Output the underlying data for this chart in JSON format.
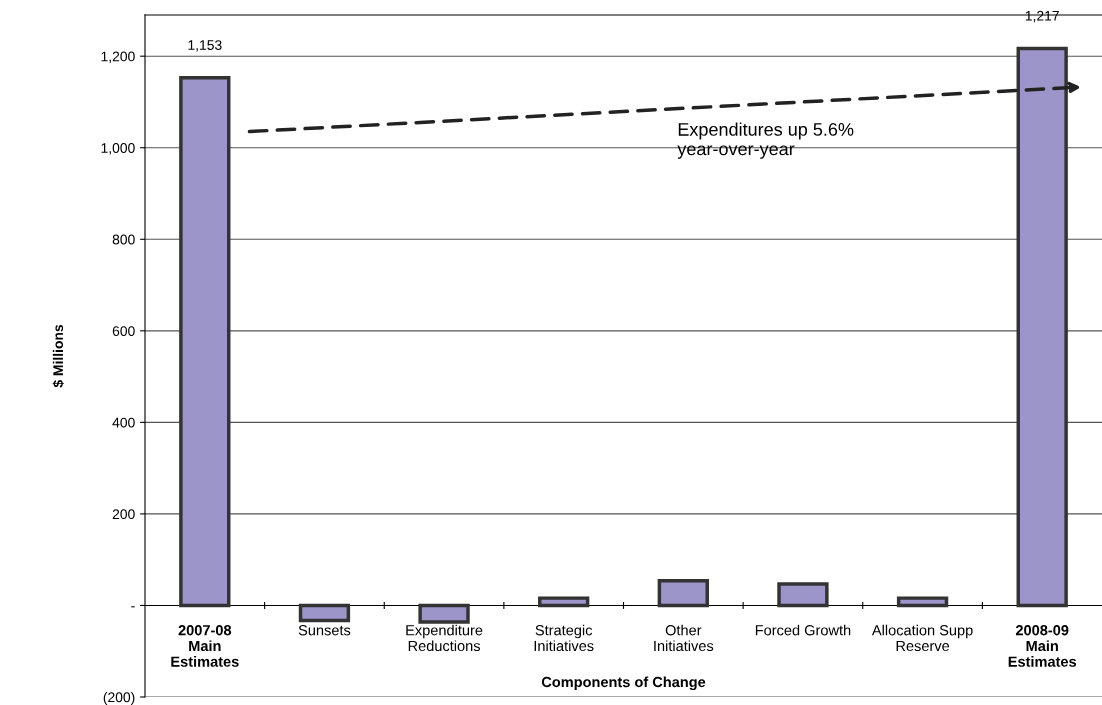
{
  "chart_data": {
    "type": "bar",
    "categories": [
      "2007-08\nMain\nEstimates",
      "Sunsets",
      "Expenditure\nReductions",
      "Strategic\nInitiatives",
      "Other\nInitiatives",
      "Forced Growth",
      "Allocation Supp\nReserve",
      "2008-09\nMain\nEstimates"
    ],
    "values": [
      1153,
      -33,
      -36,
      16,
      54,
      47,
      16,
      1217
    ],
    "value_labels": [
      "1,153",
      null,
      null,
      null,
      null,
      null,
      null,
      "1,217"
    ],
    "color": "#9b95c9",
    "ylabel": "$ Millions",
    "xlabel": "Components of Change",
    "ylim": [
      -200,
      1290
    ],
    "yticks": [
      {
        "value": -200,
        "label": "(200)"
      },
      {
        "value": 0,
        "label": "-"
      },
      {
        "value": 200,
        "label": "200"
      },
      {
        "value": 400,
        "label": "400"
      },
      {
        "value": 600,
        "label": "600"
      },
      {
        "value": 800,
        "label": "800"
      },
      {
        "value": 1000,
        "label": "1,000"
      },
      {
        "value": 1200,
        "label": "1,200"
      }
    ],
    "grid": "y",
    "legend": false,
    "annotations": [
      "Expenditures up 5.6%\nyear-over-year"
    ]
  }
}
